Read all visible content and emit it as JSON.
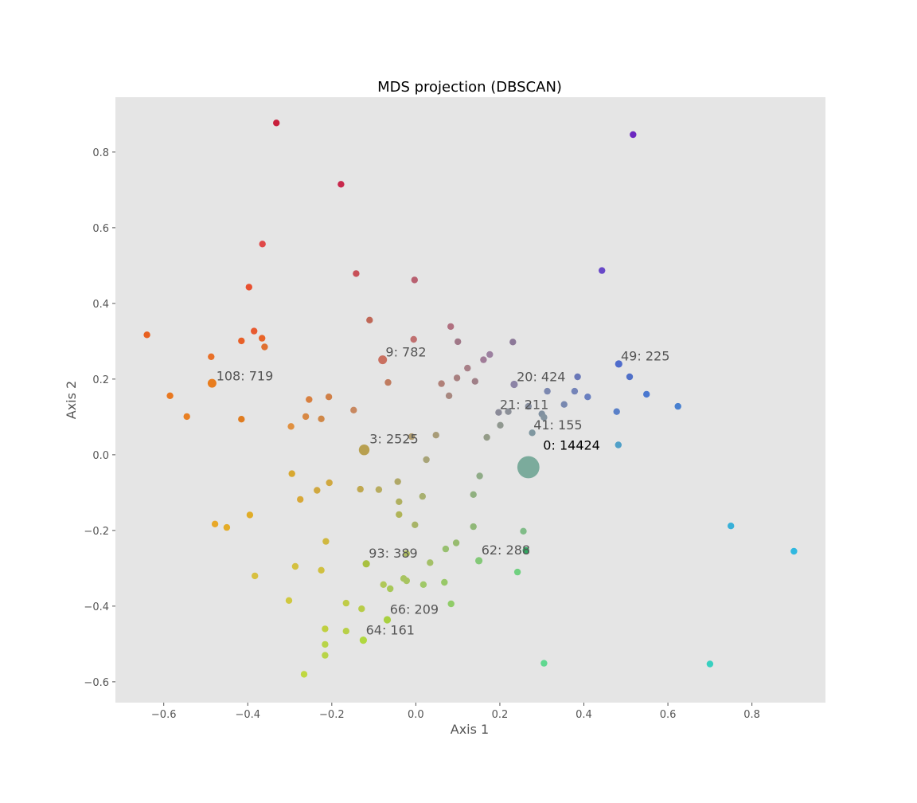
{
  "chart_data": {
    "type": "scatter",
    "title": "MDS projection (DBSCAN)",
    "xlabel": "Axis 1",
    "ylabel": "Axis 2",
    "xlim": [
      -0.715,
      0.975
    ],
    "ylim": [
      -0.655,
      0.945
    ],
    "xticks": [
      -0.6,
      -0.4,
      -0.2,
      0.0,
      0.2,
      0.4,
      0.6,
      0.8
    ],
    "yticks": [
      -0.6,
      -0.4,
      -0.2,
      0.0,
      0.2,
      0.4,
      0.6,
      0.8
    ],
    "xtick_labels": [
      "−0.6",
      "−0.4",
      "−0.2",
      "0.0",
      "0.2",
      "0.4",
      "0.6",
      "0.8"
    ],
    "ytick_labels": [
      "−0.6",
      "−0.4",
      "−0.2",
      "0.0",
      "0.2",
      "0.4",
      "0.6",
      "0.8"
    ],
    "grid": false,
    "background": "#e5e5e5",
    "points": [
      {
        "x": 0.268,
        "y": -0.033,
        "size": 3.3,
        "color": "#7bab9c"
      },
      {
        "x": -0.123,
        "y": 0.013,
        "size": 1.6,
        "color": "#b8a050"
      },
      {
        "x": -0.079,
        "y": 0.251,
        "size": 1.3,
        "color": "#c97060"
      },
      {
        "x": -0.485,
        "y": 0.189,
        "size": 1.3,
        "color": "#e87d1e"
      },
      {
        "x": 0.483,
        "y": 0.24,
        "size": 1.1,
        "color": "#4f6ccc"
      },
      {
        "x": 0.234,
        "y": 0.186,
        "size": 1.1,
        "color": "#8c84a6"
      },
      {
        "x": 0.197,
        "y": 0.112,
        "size": 1.0,
        "color": "#8a8a98"
      },
      {
        "x": 0.277,
        "y": 0.058,
        "size": 1.0,
        "color": "#7f97a0"
      },
      {
        "x": 0.15,
        "y": -0.28,
        "size": 1.1,
        "color": "#84c878"
      },
      {
        "x": -0.118,
        "y": -0.288,
        "size": 1.1,
        "color": "#a8c040"
      },
      {
        "x": -0.068,
        "y": -0.436,
        "size": 1.1,
        "color": "#a8d040"
      },
      {
        "x": -0.125,
        "y": -0.49,
        "size": 1.1,
        "color": "#b0d840"
      },
      {
        "x": -0.332,
        "y": 0.877,
        "size": 1.0,
        "color": "#c8203c"
      },
      {
        "x": -0.178,
        "y": 0.715,
        "size": 1.0,
        "color": "#c8284c"
      },
      {
        "x": -0.365,
        "y": 0.557,
        "size": 1.0,
        "color": "#e04848"
      },
      {
        "x": -0.142,
        "y": 0.479,
        "size": 1.0,
        "color": "#c85058"
      },
      {
        "x": -0.003,
        "y": 0.462,
        "size": 1.0,
        "color": "#b86070"
      },
      {
        "x": -0.397,
        "y": 0.443,
        "size": 1.0,
        "color": "#e85030"
      },
      {
        "x": -0.11,
        "y": 0.356,
        "size": 1.0,
        "color": "#c06858"
      },
      {
        "x": 0.083,
        "y": 0.339,
        "size": 1.0,
        "color": "#b07080"
      },
      {
        "x": -0.385,
        "y": 0.327,
        "size": 1.0,
        "color": "#e85a30"
      },
      {
        "x": -0.64,
        "y": 0.317,
        "size": 1.0,
        "color": "#e86020"
      },
      {
        "x": -0.366,
        "y": 0.308,
        "size": 1.0,
        "color": "#e86428"
      },
      {
        "x": -0.005,
        "y": 0.305,
        "size": 1.0,
        "color": "#c07070"
      },
      {
        "x": -0.415,
        "y": 0.301,
        "size": 1.0,
        "color": "#e86028"
      },
      {
        "x": 0.1,
        "y": 0.299,
        "size": 1.0,
        "color": "#a07888"
      },
      {
        "x": 0.231,
        "y": 0.298,
        "size": 1.0,
        "color": "#8c7898"
      },
      {
        "x": -0.36,
        "y": 0.285,
        "size": 1.0,
        "color": "#e07030"
      },
      {
        "x": 0.176,
        "y": 0.265,
        "size": 1.0,
        "color": "#9c80a0"
      },
      {
        "x": -0.487,
        "y": 0.259,
        "size": 1.0,
        "color": "#e87028"
      },
      {
        "x": 0.161,
        "y": 0.251,
        "size": 1.0,
        "color": "#a07c98"
      },
      {
        "x": 0.123,
        "y": 0.229,
        "size": 1.0,
        "color": "#a88088"
      },
      {
        "x": 0.385,
        "y": 0.206,
        "size": 1.0,
        "color": "#6a78b8"
      },
      {
        "x": 0.509,
        "y": 0.206,
        "size": 1.0,
        "color": "#5070c8"
      },
      {
        "x": 0.098,
        "y": 0.203,
        "size": 1.0,
        "color": "#a88080"
      },
      {
        "x": 0.141,
        "y": 0.194,
        "size": 1.0,
        "color": "#a08088"
      },
      {
        "x": -0.066,
        "y": 0.191,
        "size": 1.0,
        "color": "#c07c60"
      },
      {
        "x": 0.061,
        "y": 0.188,
        "size": 1.0,
        "color": "#b08078"
      },
      {
        "x": 0.313,
        "y": 0.168,
        "size": 1.0,
        "color": "#7c88b0"
      },
      {
        "x": 0.378,
        "y": 0.168,
        "size": 1.0,
        "color": "#7484b8"
      },
      {
        "x": 0.549,
        "y": 0.16,
        "size": 1.0,
        "color": "#4a78d0"
      },
      {
        "x": -0.585,
        "y": 0.156,
        "size": 1.0,
        "color": "#e87820"
      },
      {
        "x": 0.079,
        "y": 0.156,
        "size": 1.0,
        "color": "#a88880"
      },
      {
        "x": -0.207,
        "y": 0.153,
        "size": 1.0,
        "color": "#d08048"
      },
      {
        "x": 0.409,
        "y": 0.153,
        "size": 1.0,
        "color": "#6a80c0"
      },
      {
        "x": -0.254,
        "y": 0.146,
        "size": 1.0,
        "color": "#d88040"
      },
      {
        "x": 0.353,
        "y": 0.133,
        "size": 1.0,
        "color": "#7888b0"
      },
      {
        "x": 0.624,
        "y": 0.128,
        "size": 1.0,
        "color": "#4880d0"
      },
      {
        "x": 0.268,
        "y": 0.128,
        "size": 1.0,
        "color": "#8890a0"
      },
      {
        "x": -0.148,
        "y": 0.118,
        "size": 1.0,
        "color": "#c88860"
      },
      {
        "x": 0.22,
        "y": 0.114,
        "size": 1.0,
        "color": "#8c9098"
      },
      {
        "x": 0.478,
        "y": 0.114,
        "size": 1.0,
        "color": "#5a80c8"
      },
      {
        "x": 0.3,
        "y": 0.108,
        "size": 1.0,
        "color": "#8090a0"
      },
      {
        "x": -0.545,
        "y": 0.101,
        "size": 1.0,
        "color": "#e88024"
      },
      {
        "x": -0.262,
        "y": 0.101,
        "size": 1.0,
        "color": "#d88844"
      },
      {
        "x": 0.305,
        "y": 0.099,
        "size": 1.0,
        "color": "#8494a0"
      },
      {
        "x": -0.225,
        "y": 0.095,
        "size": 1.0,
        "color": "#d08848"
      },
      {
        "x": -0.415,
        "y": 0.094,
        "size": 1.0,
        "color": "#e07c20"
      },
      {
        "x": 0.201,
        "y": 0.078,
        "size": 1.0,
        "color": "#909890"
      },
      {
        "x": -0.297,
        "y": 0.075,
        "size": 1.0,
        "color": "#e09040"
      },
      {
        "x": 0.169,
        "y": 0.046,
        "size": 1.0,
        "color": "#949c88"
      },
      {
        "x": 0.048,
        "y": 0.052,
        "size": 1.0,
        "color": "#a89c78"
      },
      {
        "x": -0.01,
        "y": 0.048,
        "size": 1.0,
        "color": "#b09c70"
      },
      {
        "x": 0.482,
        "y": 0.026,
        "size": 1.0,
        "color": "#50a0c8"
      },
      {
        "x": 0.025,
        "y": -0.013,
        "size": 1.0,
        "color": "#a8a478"
      },
      {
        "x": -0.295,
        "y": -0.05,
        "size": 1.0,
        "color": "#d8a830"
      },
      {
        "x": 0.152,
        "y": -0.056,
        "size": 1.0,
        "color": "#90ac88"
      },
      {
        "x": -0.043,
        "y": -0.071,
        "size": 1.0,
        "color": "#b0a868"
      },
      {
        "x": -0.206,
        "y": -0.074,
        "size": 1.0,
        "color": "#d0a840"
      },
      {
        "x": -0.088,
        "y": -0.092,
        "size": 1.0,
        "color": "#b8ac60"
      },
      {
        "x": -0.132,
        "y": -0.091,
        "size": 1.0,
        "color": "#c0a850"
      },
      {
        "x": -0.235,
        "y": -0.094,
        "size": 1.0,
        "color": "#d0a840"
      },
      {
        "x": 0.137,
        "y": -0.105,
        "size": 1.0,
        "color": "#90b080"
      },
      {
        "x": 0.016,
        "y": -0.11,
        "size": 1.0,
        "color": "#a8b070"
      },
      {
        "x": -0.275,
        "y": -0.118,
        "size": 1.0,
        "color": "#d8a838"
      },
      {
        "x": -0.04,
        "y": -0.124,
        "size": 1.0,
        "color": "#b0b060"
      },
      {
        "x": -0.04,
        "y": -0.158,
        "size": 1.0,
        "color": "#b0b458"
      },
      {
        "x": -0.395,
        "y": -0.159,
        "size": 1.0,
        "color": "#e0ac28"
      },
      {
        "x": -0.478,
        "y": -0.183,
        "size": 1.0,
        "color": "#e8a828"
      },
      {
        "x": -0.002,
        "y": -0.185,
        "size": 1.0,
        "color": "#a8b468"
      },
      {
        "x": 0.137,
        "y": -0.19,
        "size": 1.0,
        "color": "#90b878"
      },
      {
        "x": -0.45,
        "y": -0.192,
        "size": 1.0,
        "color": "#e4ac28"
      },
      {
        "x": 0.75,
        "y": -0.188,
        "size": 1.0,
        "color": "#38b0d8"
      },
      {
        "x": 0.256,
        "y": -0.202,
        "size": 1.0,
        "color": "#80bc88"
      },
      {
        "x": -0.214,
        "y": -0.229,
        "size": 1.0,
        "color": "#d0b840"
      },
      {
        "x": 0.096,
        "y": -0.233,
        "size": 1.0,
        "color": "#98bc70"
      },
      {
        "x": 0.071,
        "y": -0.249,
        "size": 1.0,
        "color": "#98c070"
      },
      {
        "x": 0.262,
        "y": -0.253,
        "size": 1.0,
        "color": "#30a860"
      },
      {
        "x": -0.022,
        "y": -0.261,
        "size": 1.0,
        "color": "#b0c060"
      },
      {
        "x": 0.9,
        "y": -0.255,
        "size": 1.0,
        "color": "#30b8e0"
      },
      {
        "x": 0.034,
        "y": -0.285,
        "size": 1.0,
        "color": "#a4c068"
      },
      {
        "x": -0.287,
        "y": -0.295,
        "size": 1.0,
        "color": "#d4c040"
      },
      {
        "x": -0.225,
        "y": -0.305,
        "size": 1.0,
        "color": "#d0c040"
      },
      {
        "x": 0.242,
        "y": -0.31,
        "size": 1.0,
        "color": "#70d080"
      },
      {
        "x": -0.383,
        "y": -0.32,
        "size": 1.0,
        "color": "#d8c040"
      },
      {
        "x": -0.029,
        "y": -0.327,
        "size": 1.0,
        "color": "#a8c460"
      },
      {
        "x": -0.022,
        "y": -0.333,
        "size": 1.0,
        "color": "#a8c460"
      },
      {
        "x": 0.068,
        "y": -0.337,
        "size": 1.0,
        "color": "#98c868"
      },
      {
        "x": 0.018,
        "y": -0.343,
        "size": 1.0,
        "color": "#a0c868"
      },
      {
        "x": -0.077,
        "y": -0.343,
        "size": 1.0,
        "color": "#b0c858"
      },
      {
        "x": -0.061,
        "y": -0.354,
        "size": 1.0,
        "color": "#a8c858"
      },
      {
        "x": -0.302,
        "y": -0.385,
        "size": 1.0,
        "color": "#d0c840"
      },
      {
        "x": -0.166,
        "y": -0.392,
        "size": 1.0,
        "color": "#c0cc48"
      },
      {
        "x": 0.084,
        "y": -0.394,
        "size": 1.0,
        "color": "#90cc68"
      },
      {
        "x": -0.129,
        "y": -0.407,
        "size": 1.0,
        "color": "#b8cc48"
      },
      {
        "x": -0.216,
        "y": -0.46,
        "size": 1.0,
        "color": "#c0d040"
      },
      {
        "x": -0.166,
        "y": -0.466,
        "size": 1.0,
        "color": "#b8d048"
      },
      {
        "x": -0.216,
        "y": -0.501,
        "size": 1.0,
        "color": "#b8d448"
      },
      {
        "x": -0.216,
        "y": -0.53,
        "size": 1.0,
        "color": "#b8d448"
      },
      {
        "x": 0.305,
        "y": -0.551,
        "size": 1.0,
        "color": "#60d890"
      },
      {
        "x": 0.7,
        "y": -0.553,
        "size": 1.0,
        "color": "#38d0c0"
      },
      {
        "x": -0.266,
        "y": -0.58,
        "size": 1.0,
        "color": "#c0d840"
      },
      {
        "x": 0.517,
        "y": 0.846,
        "size": 1.0,
        "color": "#6c28c0"
      },
      {
        "x": 0.443,
        "y": 0.487,
        "size": 1.0,
        "color": "#6848c8"
      }
    ],
    "annotations": [
      {
        "text": "0: 14424",
        "x": 0.303,
        "y": 0.013,
        "color": "#000000"
      },
      {
        "text": "3: 2525",
        "x": -0.11,
        "y": 0.03,
        "color": "#555555"
      },
      {
        "text": "9: 782",
        "x": -0.072,
        "y": 0.26,
        "color": "#555555"
      },
      {
        "text": "108: 719",
        "x": -0.475,
        "y": 0.197,
        "color": "#555555"
      },
      {
        "text": "20: 424",
        "x": 0.24,
        "y": 0.194,
        "color": "#555555"
      },
      {
        "text": "49: 225",
        "x": 0.488,
        "y": 0.249,
        "color": "#555555"
      },
      {
        "text": "21: 211",
        "x": 0.2,
        "y": 0.121,
        "color": "#555555"
      },
      {
        "text": "41: 155",
        "x": 0.28,
        "y": 0.067,
        "color": "#555555"
      },
      {
        "text": "93: 389",
        "x": -0.112,
        "y": -0.272,
        "color": "#555555"
      },
      {
        "text": "62: 288",
        "x": 0.156,
        "y": -0.263,
        "color": "#555555"
      },
      {
        "text": "66: 209",
        "x": -0.062,
        "y": -0.42,
        "color": "#555555"
      },
      {
        "text": "64: 161",
        "x": -0.119,
        "y": -0.475,
        "color": "#555555"
      }
    ]
  }
}
